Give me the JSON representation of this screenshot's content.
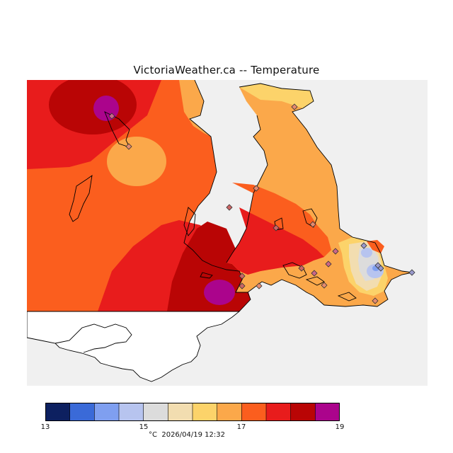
{
  "title": "VictoriaWeather.ca -- Temperature",
  "map": {
    "land_outside_grid_color": "#ffffff",
    "water_color": "#f0f0f0",
    "station_marker": "diamond-icon"
  },
  "legend": {
    "unit": "°C",
    "timestamp": "2026/04/19 12:32",
    "ticks": [
      "13",
      "15",
      "17",
      "19"
    ],
    "bins": [
      {
        "from": 13.0,
        "to": 13.5,
        "color": "#0d2060"
      },
      {
        "from": 13.5,
        "to": 14.0,
        "color": "#3a6ad8"
      },
      {
        "from": 14.0,
        "to": 14.5,
        "color": "#7f9ff0"
      },
      {
        "from": 14.5,
        "to": 15.0,
        "color": "#b7c4ef"
      },
      {
        "from": 15.0,
        "to": 15.5,
        "color": "#dcdcdc"
      },
      {
        "from": 15.5,
        "to": 16.0,
        "color": "#f2ddb0"
      },
      {
        "from": 16.0,
        "to": 16.5,
        "color": "#fcd36a"
      },
      {
        "from": 16.5,
        "to": 17.0,
        "color": "#fba84a"
      },
      {
        "from": 17.0,
        "to": 17.5,
        "color": "#fb5e1e"
      },
      {
        "from": 17.5,
        "to": 18.0,
        "color": "#e81c1c"
      },
      {
        "from": 18.0,
        "to": 18.5,
        "color": "#b90505"
      },
      {
        "from": 18.5,
        "to": 19.0,
        "color": "#ab048c"
      }
    ]
  }
}
